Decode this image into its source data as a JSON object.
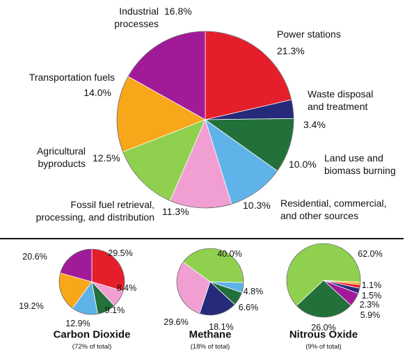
{
  "chart_data": [
    {
      "type": "pie",
      "categories": [
        "Power stations",
        "Waste disposal\nand treatment",
        "Land use and\nbiomass burning",
        "Residential, commercial,\nand other sources",
        "Fossil fuel retrieval,\nprocessing, and distribution",
        "Agricultural\nbyproducts",
        "Transportation fuels",
        "Industrial\nprocesses"
      ],
      "values": [
        21.3,
        3.4,
        10.0,
        10.3,
        11.3,
        12.5,
        14.0,
        16.8
      ],
      "value_labels": [
        "21.3%",
        "3.4%",
        "10.0%",
        "10.3%",
        "11.3%",
        "12.5%",
        "14.0%",
        "16.8%"
      ],
      "colors": [
        "#e41f2b",
        "#262a7a",
        "#22703a",
        "#5fb3e8",
        "#f19ed2",
        "#8fd14f",
        "#f8a61a",
        "#a11b99"
      ]
    },
    {
      "type": "pie",
      "title": "Carbon Dioxide",
      "subtitle": "(72% of total)",
      "values": [
        29.5,
        8.4,
        9.1,
        12.9,
        19.2,
        20.6
      ],
      "value_labels": [
        "29.5%",
        "8.4%",
        "9.1%",
        "12.9%",
        "19.2%",
        "20.6%"
      ],
      "colors": [
        "#e41f2b",
        "#f19ed2",
        "#22703a",
        "#5fb3e8",
        "#f8a61a",
        "#a11b99"
      ]
    },
    {
      "type": "pie",
      "title": "Methane",
      "subtitle": "(18% of total)",
      "values": [
        40.0,
        4.8,
        6.6,
        18.1,
        29.6
      ],
      "value_labels": [
        "40.0%",
        "4.8%",
        "6.6%",
        "18.1%",
        "29.6%"
      ],
      "colors": [
        "#8fd14f",
        "#5fb3e8",
        "#22703a",
        "#262a7a",
        "#f19ed2"
      ]
    },
    {
      "type": "pie",
      "title": "Nitrous Oxide",
      "subtitle": "(9% of total)",
      "values": [
        62.0,
        1.1,
        1.5,
        2.3,
        5.9,
        26.0
      ],
      "value_labels": [
        "62.0%",
        "1.1%",
        "1.5%",
        "2.3%",
        "5.9%",
        "26.0%"
      ],
      "colors": [
        "#8fd14f",
        "#f8a61a",
        "#e41f2b",
        "#262a7a",
        "#a11b99",
        "#22703a"
      ]
    }
  ]
}
